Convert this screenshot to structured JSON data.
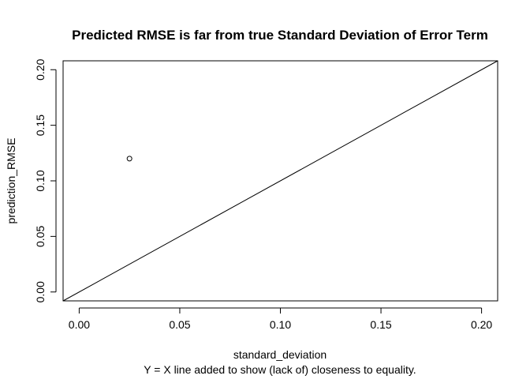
{
  "chart_data": {
    "type": "scatter",
    "title": "Predicted RMSE is far from true Standard Deviation of Error Term",
    "subtitle": "Y = X line added to show (lack of) closeness to equality.",
    "xlabel": "standard_deviation",
    "ylabel": "prediction_RMSE",
    "xlim": [
      -0.008,
      0.208
    ],
    "ylim": [
      -0.008,
      0.208
    ],
    "x_ticks": [
      0.0,
      0.05,
      0.1,
      0.15,
      0.2
    ],
    "x_tick_labels": [
      "0.00",
      "0.05",
      "0.10",
      "0.15",
      "0.20"
    ],
    "y_ticks": [
      0.0,
      0.05,
      0.1,
      0.15,
      0.2
    ],
    "y_tick_labels": [
      "0.00",
      "0.05",
      "0.10",
      "0.15",
      "0.20"
    ],
    "points": [
      {
        "x": 0.025,
        "y": 0.12
      }
    ],
    "reference_line": {
      "slope": 1,
      "intercept": 0
    },
    "grid": false,
    "legend": "none",
    "colors": {
      "point": "#000000",
      "line": "#000000",
      "frame": "#000000",
      "background": "#ffffff"
    }
  }
}
